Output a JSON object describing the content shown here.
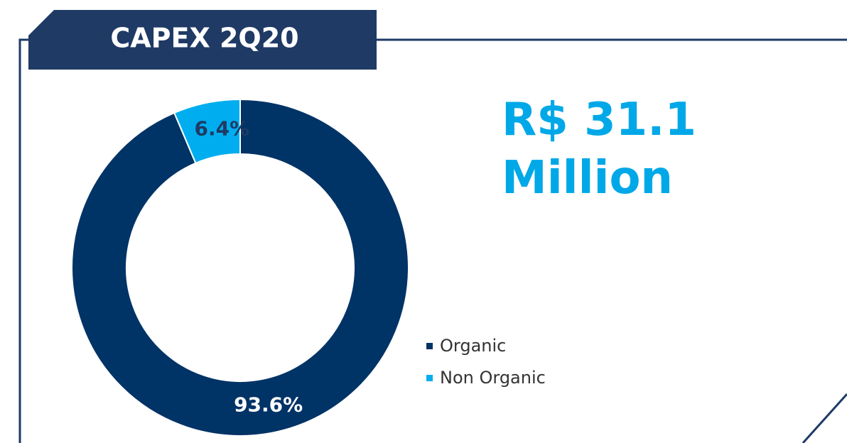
{
  "chart_data": {
    "type": "pie",
    "title": "CAPEX 2Q20",
    "annotation": "R$ 31.1 Million",
    "categories": [
      "Organic",
      "Non Organic"
    ],
    "values": [
      93.6,
      6.4
    ],
    "value_labels": [
      "93.6%",
      "6.4%"
    ],
    "colors": [
      "#003366",
      "#00aeef"
    ],
    "legend": "right"
  }
}
